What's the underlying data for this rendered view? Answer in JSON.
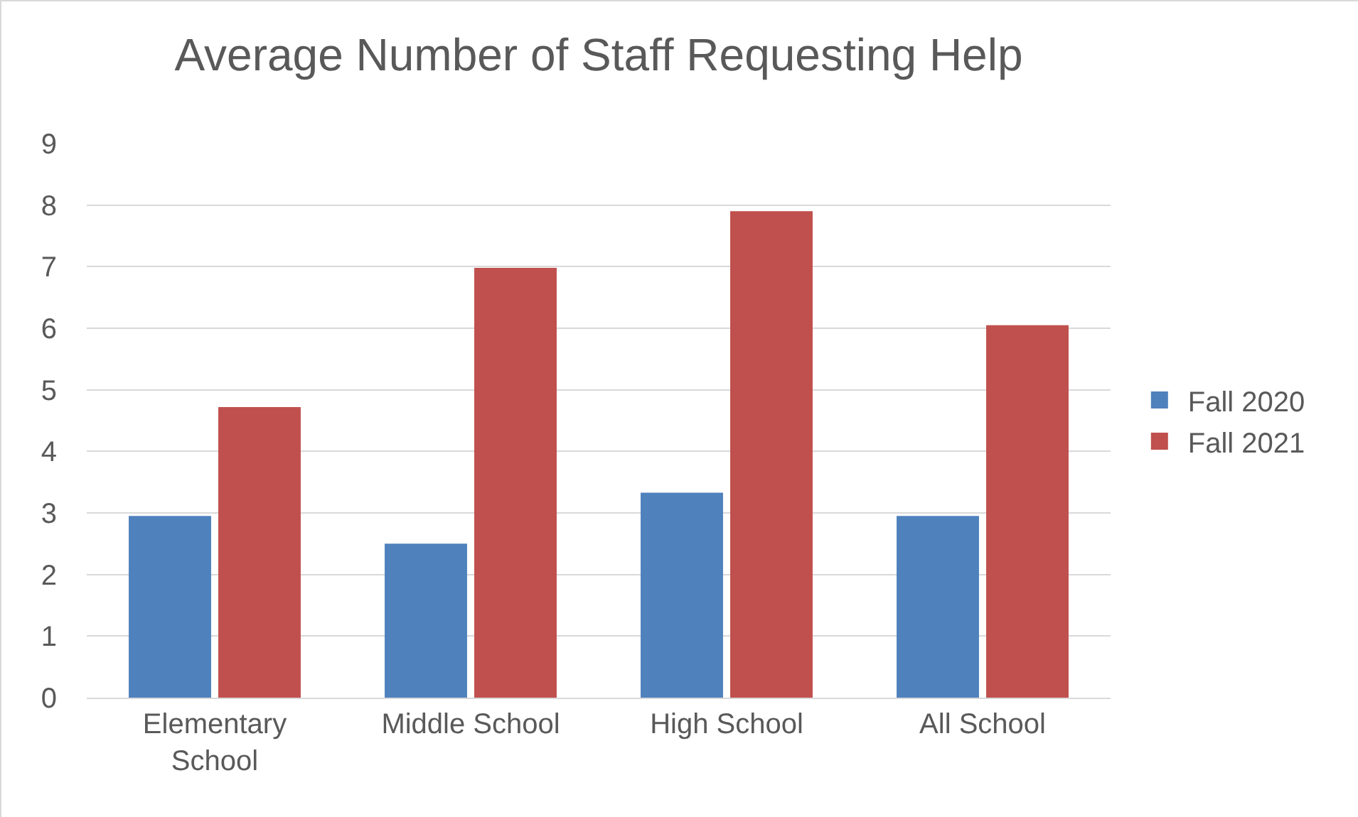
{
  "chart_data": {
    "type": "bar",
    "title": "Average Number of Staff Requesting Help",
    "categories": [
      "Elementary School",
      "Middle School",
      "High School",
      "All School"
    ],
    "series": [
      {
        "name": "Fall 2020",
        "color": "#4f81bd",
        "values": [
          2.95,
          2.5,
          3.33,
          2.95
        ]
      },
      {
        "name": "Fall 2021",
        "color": "#c0504d",
        "values": [
          4.72,
          6.98,
          7.9,
          6.05
        ]
      }
    ],
    "ylim": [
      0,
      9
    ],
    "yticks": [
      0,
      1,
      2,
      3,
      4,
      5,
      6,
      7,
      8,
      9
    ],
    "grid": "y",
    "legend": "right"
  }
}
